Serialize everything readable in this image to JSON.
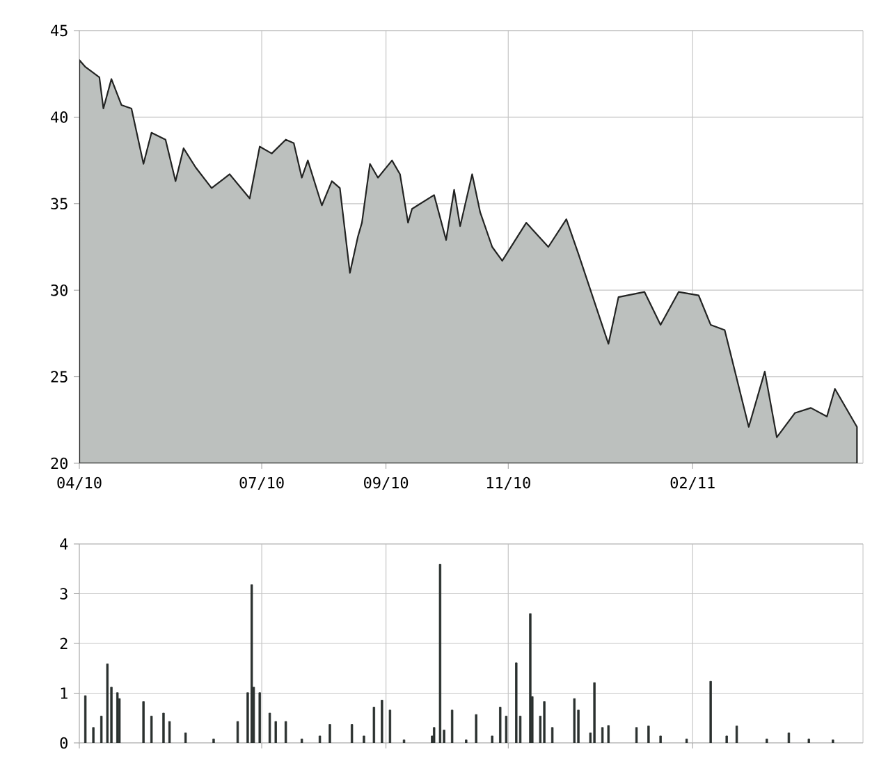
{
  "chart_data": [
    {
      "type": "area",
      "color": "#bcc0be",
      "xlim": [
        "2010-04-01",
        "2011-04-27"
      ],
      "ylim": [
        20,
        45
      ],
      "yticks": [
        20,
        25,
        30,
        35,
        40,
        45
      ],
      "grid": true,
      "xticks": [
        {
          "value": "2010-04-01",
          "label": "04/10"
        },
        {
          "value": "2010-07-01",
          "label": "07/10"
        },
        {
          "value": "2010-09-01",
          "label": "09/10"
        },
        {
          "value": "2010-11-01",
          "label": "11/10"
        },
        {
          "value": "2011-02-01",
          "label": "02/11"
        }
      ],
      "x": [
        "2010-04-01",
        "2010-04-04",
        "2010-04-11",
        "2010-04-13",
        "2010-04-17",
        "2010-04-22",
        "2010-04-27",
        "2010-05-03",
        "2010-05-07",
        "2010-05-14",
        "2010-05-19",
        "2010-05-23",
        "2010-05-29",
        "2010-06-06",
        "2010-06-15",
        "2010-06-25",
        "2010-06-30",
        "2010-07-06",
        "2010-07-13",
        "2010-07-17",
        "2010-07-21",
        "2010-07-24",
        "2010-07-31",
        "2010-08-05",
        "2010-08-09",
        "2010-08-14",
        "2010-08-18",
        "2010-08-20",
        "2010-08-24",
        "2010-08-28",
        "2010-09-04",
        "2010-09-08",
        "2010-09-12",
        "2010-09-14",
        "2010-09-25",
        "2010-10-01",
        "2010-10-05",
        "2010-10-08",
        "2010-10-14",
        "2010-10-18",
        "2010-10-24",
        "2010-10-29",
        "2010-11-10",
        "2010-11-21",
        "2010-11-30",
        "2010-12-06",
        "2010-12-21",
        "2010-12-26",
        "2011-01-08",
        "2011-01-16",
        "2011-01-25",
        "2011-02-04",
        "2011-02-10",
        "2011-02-17",
        "2011-03-01",
        "2011-03-09",
        "2011-03-15",
        "2011-03-24",
        "2011-04-01",
        "2011-04-09",
        "2011-04-13",
        "2011-04-24"
      ],
      "values": [
        43.3,
        42.9,
        42.3,
        40.5,
        42.2,
        40.7,
        40.5,
        37.3,
        39.1,
        38.7,
        36.3,
        38.2,
        37.1,
        35.9,
        36.7,
        35.3,
        38.3,
        37.9,
        38.7,
        38.5,
        36.5,
        37.5,
        34.9,
        36.3,
        35.9,
        31,
        33.1,
        33.9,
        37.3,
        36.5,
        37.5,
        36.7,
        33.9,
        34.7,
        35.5,
        32.9,
        35.8,
        33.7,
        36.7,
        34.5,
        32.5,
        31.7,
        33.9,
        32.5,
        34.1,
        32.1,
        26.9,
        29.6,
        29.9,
        28.0,
        29.9,
        29.7,
        28.0,
        27.7,
        22.1,
        25.3,
        21.5,
        22.9,
        23.2,
        22.7,
        24.3,
        22.1
      ]
    },
    {
      "type": "bar",
      "color": "#2a302e",
      "xlim": [
        "2010-04-01",
        "2011-04-27"
      ],
      "ylim": [
        0,
        4
      ],
      "yticks": [
        0,
        1,
        2,
        3,
        4
      ],
      "grid": true,
      "tick_labels": "y",
      "xticks": [
        {
          "value": "2010-04-01",
          "label": null
        },
        {
          "value": "2010-07-01",
          "label": null
        },
        {
          "value": "2010-09-01",
          "label": null
        },
        {
          "value": "2010-11-01",
          "label": null
        },
        {
          "value": "2011-02-01",
          "label": null
        }
      ],
      "x": [
        "2010-04-04",
        "2010-04-08",
        "2010-04-12",
        "2010-04-15",
        "2010-04-17",
        "2010-04-20",
        "2010-04-21",
        "2010-05-03",
        "2010-05-07",
        "2010-05-13",
        "2010-05-16",
        "2010-05-24",
        "2010-06-07",
        "2010-06-19",
        "2010-06-24",
        "2010-06-26",
        "2010-06-27",
        "2010-06-30",
        "2010-07-05",
        "2010-07-08",
        "2010-07-13",
        "2010-07-21",
        "2010-07-30",
        "2010-08-04",
        "2010-08-15",
        "2010-08-21",
        "2010-08-26",
        "2010-08-30",
        "2010-09-03",
        "2010-09-10",
        "2010-09-24",
        "2010-09-25",
        "2010-09-28",
        "2010-09-30",
        "2010-10-04",
        "2010-10-11",
        "2010-10-16",
        "2010-10-24",
        "2010-10-28",
        "2010-10-31",
        "2010-11-05",
        "2010-11-07",
        "2010-11-12",
        "2010-11-13",
        "2010-11-17",
        "2010-11-19",
        "2010-11-23",
        "2010-12-04",
        "2010-12-06",
        "2010-12-12",
        "2010-12-14",
        "2010-12-18",
        "2010-12-21",
        "2011-01-04",
        "2011-01-10",
        "2011-01-16",
        "2011-01-29",
        "2011-02-10",
        "2011-02-18",
        "2011-02-23",
        "2011-03-10",
        "2011-03-21",
        "2011-03-31",
        "2011-04-12"
      ],
      "values": [
        0.95,
        0.31,
        0.54,
        1.59,
        1.12,
        1.01,
        0.89,
        0.83,
        0.54,
        0.6,
        0.43,
        0.2,
        0.08,
        0.43,
        1.01,
        3.18,
        1.12,
        1.01,
        0.6,
        0.43,
        0.43,
        0.08,
        0.14,
        0.37,
        0.37,
        0.14,
        0.72,
        0.86,
        0.66,
        0.06,
        0.14,
        0.31,
        3.59,
        0.26,
        0.66,
        0.06,
        0.57,
        0.14,
        0.72,
        0.54,
        1.61,
        0.54,
        2.6,
        0.93,
        0.54,
        0.83,
        0.31,
        0.89,
        0.66,
        0.2,
        1.21,
        0.31,
        0.35,
        0.31,
        0.34,
        0.14,
        0.08,
        1.24,
        0.14,
        0.34,
        0.08,
        0.2,
        0.08,
        0.06
      ]
    }
  ]
}
